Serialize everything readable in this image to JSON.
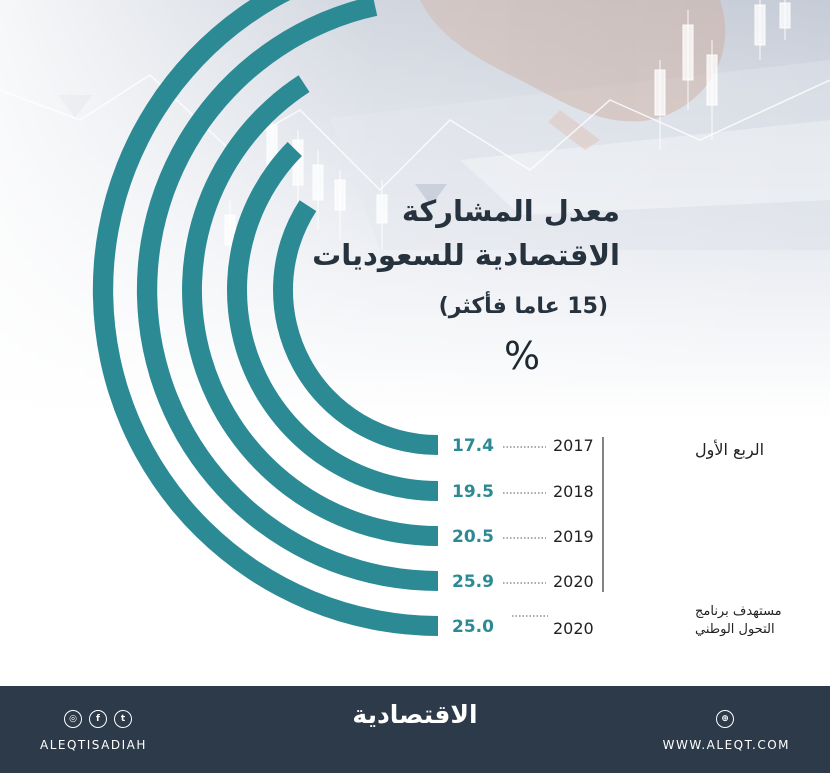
{
  "title_line1": "معدل المشاركة",
  "title_line2": "الاقتصادية للسعوديات",
  "subtitle": "(15 عاما  فأكثر)",
  "unit": "%",
  "chart_data": {
    "type": "bar",
    "title": "معدل المشاركة الاقتصادية للسعوديات",
    "subtitle": "(15 عاما  فأكثر)",
    "unit": "%",
    "period_label": "الربع الأول",
    "categories": [
      "2017",
      "2018",
      "2019",
      "2020",
      "2020"
    ],
    "values": [
      17.4,
      19.5,
      20.5,
      25.9,
      25.0
    ],
    "value_labels": [
      "17.4",
      "19.5",
      "20.5",
      "25.9",
      "25.0"
    ],
    "target_label_line1": "مستهدف برنامج",
    "target_label_line2": "التحول الوطني",
    "bar_color": "#2c8a95",
    "value_color": "#2c8a95",
    "bar_lengths": [
      0.69,
      0.755,
      0.825,
      0.94,
      1.0
    ],
    "bar_radii": [
      157,
      198,
      243,
      296,
      335
    ]
  },
  "footer": {
    "brand": "الاقتصادية",
    "social_handle": "ALEQTISADIAH",
    "website": "WWW.ALEQT.COM",
    "background_color": "#2d3a49",
    "social_icons": [
      "instagram-icon",
      "facebook-icon",
      "twitter-icon"
    ],
    "web_icons": [
      "globe-icon"
    ]
  }
}
